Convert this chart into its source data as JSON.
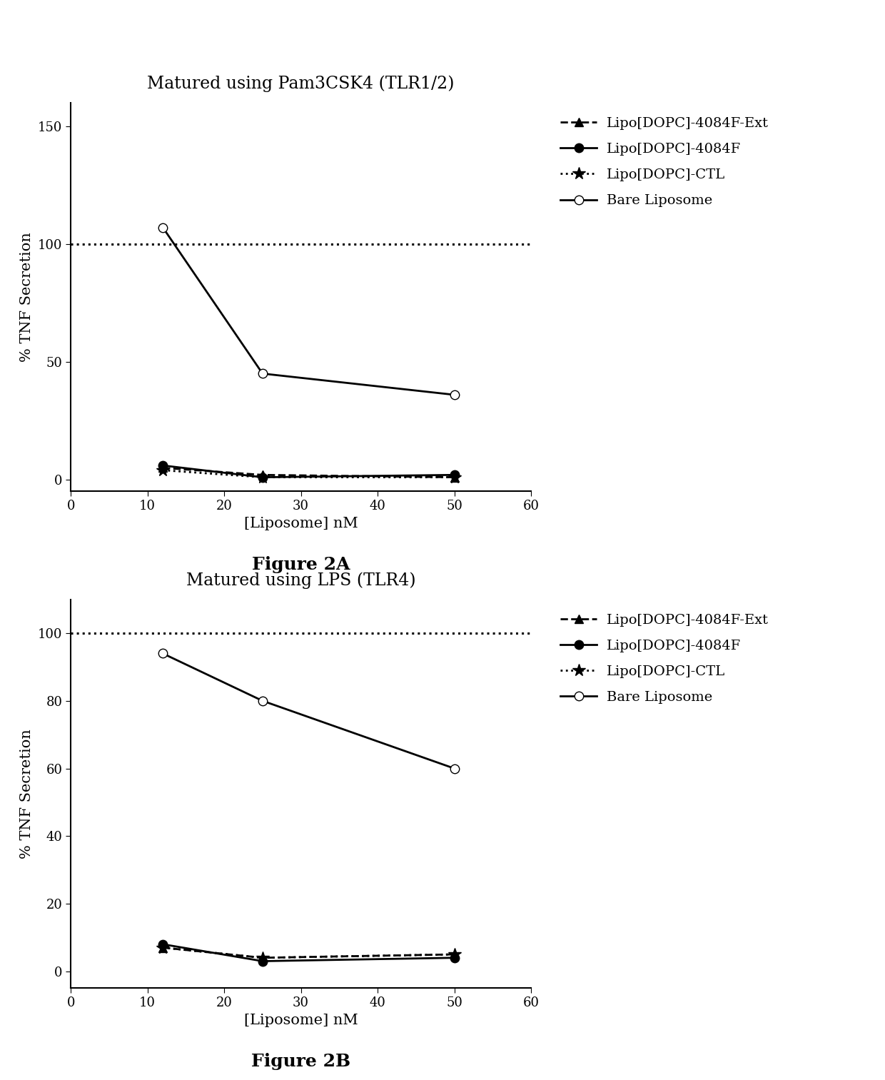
{
  "fig2A": {
    "title": "Matured using Pam3CSK4 (TLR1/2)",
    "xlabel": "[Liposome] nM",
    "ylabel": "% TNF Secretion",
    "xlim": [
      0,
      60
    ],
    "ylim": [
      -5,
      160
    ],
    "yticks": [
      0,
      50,
      100,
      150
    ],
    "xticks": [
      0,
      10,
      20,
      30,
      40,
      50,
      60
    ],
    "hline_y": 100,
    "series": {
      "ext": {
        "x": [
          12,
          25,
          50
        ],
        "y": [
          5,
          2,
          1
        ],
        "label": "Lipo[DOPC]-4084F-Ext",
        "linestyle": "--",
        "marker": "^",
        "markerfacecolor": "black",
        "color": "black"
      },
      "f4084": {
        "x": [
          12,
          25,
          50
        ],
        "y": [
          6,
          1,
          2
        ],
        "label": "Lipo[DOPC]-4084F",
        "linestyle": "-",
        "marker": "o",
        "markerfacecolor": "black",
        "color": "black"
      },
      "ctl": {
        "x": [
          12,
          25,
          50
        ],
        "y": [
          4,
          1,
          1
        ],
        "label": "Lipo[DOPC]-CTL",
        "linestyle": ":",
        "marker": "*",
        "markerfacecolor": "black",
        "color": "black"
      },
      "bare": {
        "x": [
          12,
          25,
          50
        ],
        "y": [
          107,
          45,
          36
        ],
        "label": "Bare Liposome",
        "linestyle": "-",
        "marker": "o",
        "markerfacecolor": "white",
        "color": "black"
      }
    }
  },
  "fig2B": {
    "title": "Matured using LPS (TLR4)",
    "xlabel": "[Liposome] nM",
    "ylabel": "% TNF Secretion",
    "xlim": [
      0,
      60
    ],
    "ylim": [
      -5,
      110
    ],
    "yticks": [
      0,
      20,
      40,
      60,
      80,
      100
    ],
    "xticks": [
      0,
      10,
      20,
      30,
      40,
      50,
      60
    ],
    "hline_y": 100,
    "series": {
      "ext": {
        "x": [
          12,
          25,
          50
        ],
        "y": [
          7,
          4,
          5
        ],
        "label": "Lipo[DOPC]-4084F-Ext",
        "linestyle": "--",
        "marker": "^",
        "markerfacecolor": "black",
        "color": "black"
      },
      "f4084": {
        "x": [
          12,
          25,
          50
        ],
        "y": [
          8,
          3,
          4
        ],
        "label": "Lipo[DOPC]-4084F",
        "linestyle": "-",
        "marker": "o",
        "markerfacecolor": "black",
        "color": "black"
      },
      "ctl": {
        "x": [
          12,
          25,
          50
        ],
        "y": [
          7,
          4,
          5
        ],
        "label": "Lipo[DOPC]-CTL",
        "linestyle": ":",
        "marker": "*",
        "markerfacecolor": "black",
        "color": "black"
      },
      "bare": {
        "x": [
          12,
          25,
          50
        ],
        "y": [
          94,
          80,
          60
        ],
        "label": "Bare Liposome",
        "linestyle": "-",
        "marker": "o",
        "markerfacecolor": "white",
        "color": "black"
      }
    }
  },
  "figure_labels": [
    "Figure 2A",
    "Figure 2B"
  ],
  "background_color": "#ffffff"
}
